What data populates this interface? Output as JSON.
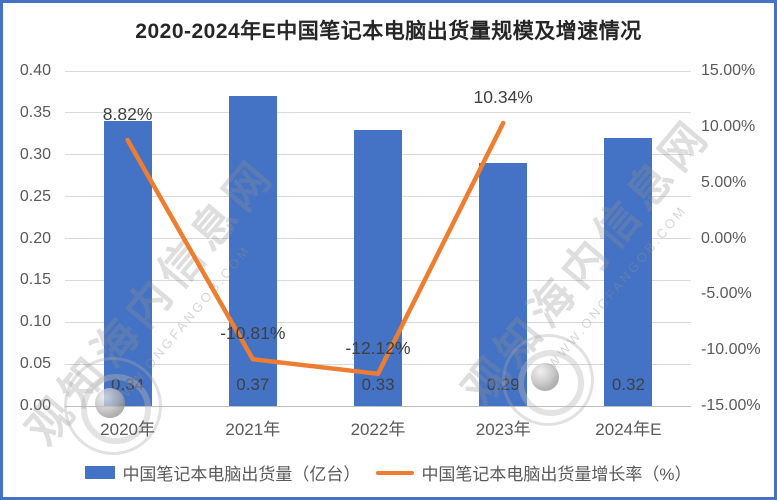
{
  "frame": {
    "background": "#ffffff",
    "border_color": "#4472C4"
  },
  "chart_data": {
    "type": "bar",
    "combo": "bar+line dual axis",
    "title": "2020-2024年E中国笔记本电脑出货量规模及增速情况",
    "categories": [
      "2020年",
      "2021年",
      "2022年",
      "2023年",
      "2024年E"
    ],
    "series": [
      {
        "name": "中国笔记本电脑出货量（亿台）",
        "type": "bar",
        "axis": "left",
        "color": "#4472C4",
        "values": [
          0.34,
          0.37,
          0.33,
          0.29,
          0.32
        ],
        "labels": [
          "0.34",
          "0.37",
          "0.33",
          "0.29",
          "0.32"
        ]
      },
      {
        "name": "中国笔记本电脑出货量增长率（%）",
        "type": "line",
        "axis": "right",
        "color": "#ED7D31",
        "values": [
          8.82,
          -10.81,
          -12.12,
          10.34,
          null
        ],
        "labels": [
          "8.82%",
          "-10.81%",
          "-12.12%",
          "10.34%",
          null
        ]
      }
    ],
    "left_axis": {
      "min": 0,
      "max": 0.4,
      "step": 0.05,
      "tick_labels": [
        "0.00",
        "0.05",
        "0.10",
        "0.15",
        "0.20",
        "0.25",
        "0.30",
        "0.35",
        "0.40"
      ]
    },
    "right_axis": {
      "min": -15,
      "max": 15,
      "step": 5,
      "tick_labels": [
        "-15.00%",
        "-10.00%",
        "-5.00%",
        "0.00%",
        "5.00%",
        "10.00%",
        "15.00%"
      ]
    },
    "grid": true,
    "legend_position": "bottom"
  },
  "watermark": {
    "cn_text": "观知海内信息网",
    "latin_text": "WWW.ONGFANGOB.COM"
  }
}
